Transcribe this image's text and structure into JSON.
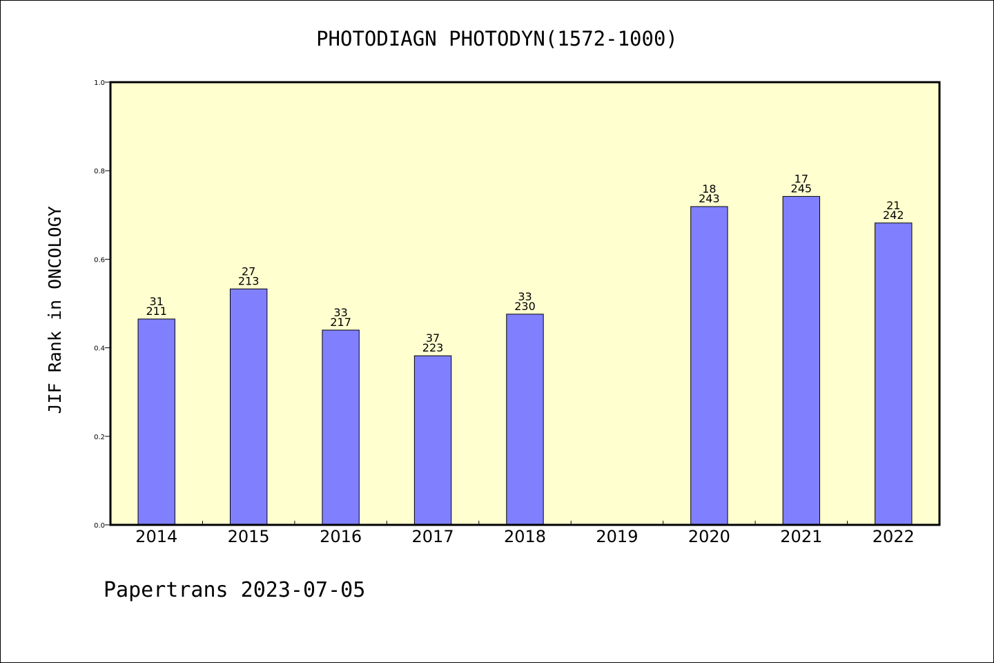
{
  "chart_data": {
    "type": "bar",
    "title": "PHOTODIAGN PHOTODYN(1572-1000)",
    "ylabel": "JIF Rank in ONCOLOGY",
    "xlabel": "",
    "ylim": [
      0,
      1.0
    ],
    "yticks": [
      "0.0",
      "0.2",
      "0.4",
      "0.6",
      "0.8",
      "1.0"
    ],
    "ytick_values": [
      0.0,
      0.2,
      0.4,
      0.6,
      0.8,
      1.0
    ],
    "grid": false,
    "categories": [
      "2014",
      "2015",
      "2016",
      "2017",
      "2018",
      "2019",
      "2020",
      "2021",
      "2022"
    ],
    "values": [
      0.465,
      0.533,
      0.44,
      0.382,
      0.476,
      null,
      0.719,
      0.742,
      0.682
    ],
    "ranks": [
      "31",
      "27",
      "33",
      "37",
      "33",
      null,
      "18",
      "17",
      "21"
    ],
    "totals": [
      "211",
      "213",
      "217",
      "223",
      "230",
      null,
      "243",
      "245",
      "242"
    ],
    "colors": {
      "plot_background": "#ffffd0",
      "bar_fill": "#8080ff",
      "bar_stroke": "#000000"
    }
  },
  "footer": {
    "text": "Papertrans 2023-07-05"
  }
}
